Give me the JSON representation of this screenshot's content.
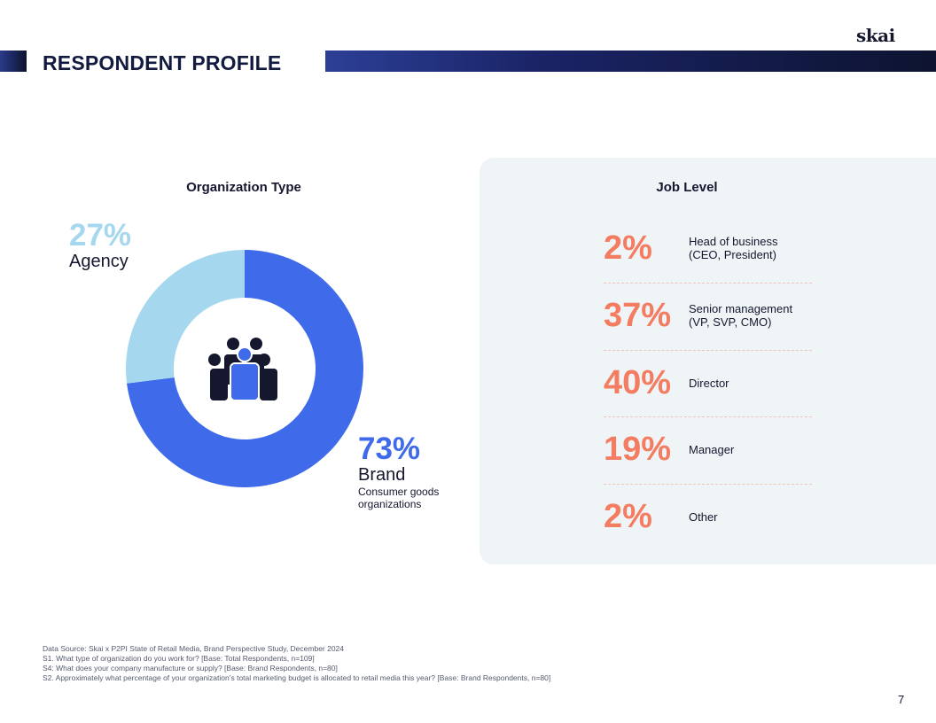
{
  "header": {
    "logo": "skai",
    "title": "RESPONDENT PROFILE"
  },
  "colors": {
    "brand_blue": "#3f6bea",
    "agency_light_blue": "#a5d8ee",
    "accent_orange": "#f47c61",
    "navy": "#14172e"
  },
  "chart_data": [
    {
      "type": "pie",
      "donut": true,
      "title": "Organization Type",
      "categories": [
        "Brand",
        "Agency"
      ],
      "values": [
        73,
        27
      ],
      "colors": [
        "#3f6bea",
        "#a5d8ee"
      ],
      "labels": [
        {
          "value": "73%",
          "name": "Brand",
          "sub": "Consumer goods organizations"
        },
        {
          "value": "27%",
          "name": "Agency"
        }
      ],
      "center_icon": "people-group-icon"
    },
    {
      "type": "table",
      "title": "Job Level",
      "rows": [
        {
          "value": "2%",
          "label": "Head of business\n(CEO, President)"
        },
        {
          "value": "37%",
          "label": "Senior management\n(VP, SVP, CMO)"
        },
        {
          "value": "40%",
          "label": "Director"
        },
        {
          "value": "19%",
          "label": "Manager"
        },
        {
          "value": "2%",
          "label": "Other"
        }
      ]
    }
  ],
  "footer": {
    "source_lines": [
      "Data Source: Skai x P2PI State of Retail Media, Brand Perspective Study, December 2024",
      "S1. What type of organization do you work for? [Base: Total Respondents, n=109]",
      "S4: What does your company manufacture or supply? [Base: Brand Respondents, n=80]",
      "S2. Approximately what percentage of your organization’s total marketing budget is allocated to retail media this year? [Base: Brand Respondents, n=80]"
    ],
    "page_number": "7"
  }
}
